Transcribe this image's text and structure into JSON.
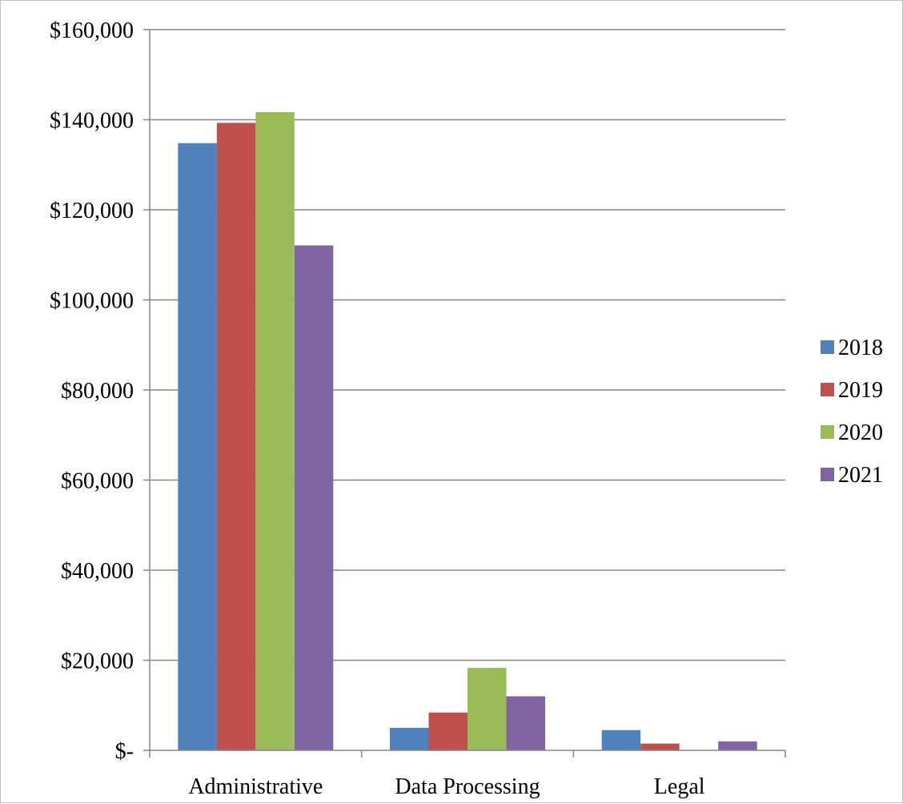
{
  "chart_data": {
    "type": "bar",
    "title": "",
    "xlabel": "",
    "ylabel": "",
    "categories": [
      "Administrative",
      "Data Processing",
      "Legal"
    ],
    "series": [
      {
        "name": "2018",
        "color": "#4F81BD",
        "values": [
          134800,
          5000,
          4500
        ]
      },
      {
        "name": "2019",
        "color": "#C0504D",
        "values": [
          139300,
          8400,
          1500
        ]
      },
      {
        "name": "2020",
        "color": "#9BBB59",
        "values": [
          141700,
          18300,
          0
        ]
      },
      {
        "name": "2021",
        "color": "#8064A2",
        "values": [
          112100,
          12000,
          2000
        ]
      }
    ],
    "ylim": [
      0,
      160000
    ],
    "y_ticks": [
      0,
      20000,
      40000,
      60000,
      80000,
      100000,
      120000,
      140000,
      160000
    ],
    "y_tick_labels": [
      "$-",
      "$20,000",
      "$40,000",
      "$60,000",
      "$80,000",
      "$100,000",
      "$120,000",
      "$140,000",
      "$160,000"
    ],
    "grid": true,
    "legend_position": "right"
  }
}
